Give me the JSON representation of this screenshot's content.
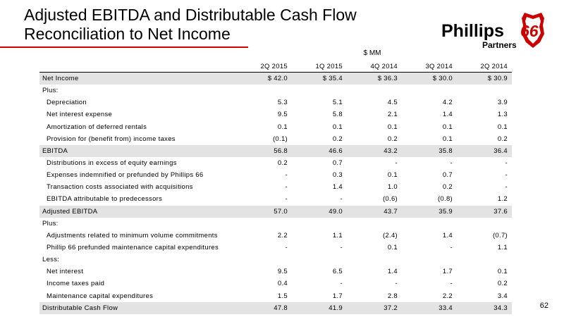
{
  "title": {
    "line1": "Adjusted EBITDA and Distributable Cash Flow",
    "line2": "Reconciliation to Net Income"
  },
  "logo": {
    "brand": "Phillips",
    "number": "66",
    "sub": "Partners",
    "color": "#cc0000"
  },
  "unit_label": "$ MM",
  "columns": [
    "2Q 2015",
    "1Q 2015",
    "4Q 2014",
    "3Q 2014",
    "2Q 2014"
  ],
  "rows": [
    {
      "label": "Net Income",
      "values": [
        "$ 42.0",
        "$ 35.4",
        "$ 36.3",
        "$ 30.0",
        "$ 30.9"
      ],
      "shaded": true,
      "indent": false
    },
    {
      "label": "Plus:",
      "values": [
        "",
        "",
        "",
        "",
        ""
      ],
      "shaded": false,
      "indent": false
    },
    {
      "label": "Depreciation",
      "values": [
        "5.3",
        "5.1",
        "4.5",
        "4.2",
        "3.9"
      ],
      "shaded": false,
      "indent": true
    },
    {
      "label": "Net interest expense",
      "values": [
        "9.5",
        "5.8",
        "2.1",
        "1.4",
        "1.3"
      ],
      "shaded": false,
      "indent": true
    },
    {
      "label": "Amortization of deferred rentals",
      "values": [
        "0.1",
        "0.1",
        "0.1",
        "0.1",
        "0.1"
      ],
      "shaded": false,
      "indent": true
    },
    {
      "label": "Provision for (benefit from) income taxes",
      "values": [
        "(0.1)",
        "0.2",
        "0.2",
        "0.1",
        "0.2"
      ],
      "shaded": false,
      "indent": true
    },
    {
      "label": "EBITDA",
      "values": [
        "56.8",
        "46.6",
        "43.2",
        "35.8",
        "36.4"
      ],
      "shaded": true,
      "indent": false
    },
    {
      "label": "Distributions in excess of equity earnings",
      "values": [
        "0.2",
        "0.7",
        "-",
        "-",
        "-"
      ],
      "shaded": false,
      "indent": true
    },
    {
      "label": "Expenses indemnified or prefunded by Phillips 66",
      "values": [
        "-",
        "0.3",
        "0.1",
        "0.7",
        "-"
      ],
      "shaded": false,
      "indent": true
    },
    {
      "label": "Transaction costs associated with acquisitions",
      "values": [
        "-",
        "1.4",
        "1.0",
        "0.2",
        "-"
      ],
      "shaded": false,
      "indent": true
    },
    {
      "label": "EBITDA attributable to predecessors",
      "values": [
        "-",
        "-",
        "(0.6)",
        "(0.8)",
        "1.2"
      ],
      "shaded": false,
      "indent": true
    },
    {
      "label": "Adjusted EBITDA",
      "values": [
        "57.0",
        "49.0",
        "43.7",
        "35.9",
        "37.6"
      ],
      "shaded": true,
      "indent": false
    },
    {
      "label": "Plus:",
      "values": [
        "",
        "",
        "",
        "",
        ""
      ],
      "shaded": false,
      "indent": false
    },
    {
      "label": "Adjustments related to minimum volume commitments",
      "values": [
        "2.2",
        "1.1",
        "(2.4)",
        "1.4",
        "(0.7)"
      ],
      "shaded": false,
      "indent": true
    },
    {
      "label": "Phillip 66 prefunded maintenance capital expenditures",
      "values": [
        "-",
        "-",
        "0.1",
        "-",
        "1.1"
      ],
      "shaded": false,
      "indent": true
    },
    {
      "label": "Less:",
      "values": [
        "",
        "",
        "",
        "",
        ""
      ],
      "shaded": false,
      "indent": false
    },
    {
      "label": "Net interest",
      "values": [
        "9.5",
        "6.5",
        "1.4",
        "1.7",
        "0.1"
      ],
      "shaded": false,
      "indent": true
    },
    {
      "label": "Income taxes paid",
      "values": [
        "0.4",
        "-",
        "-",
        "-",
        "0.2"
      ],
      "shaded": false,
      "indent": true
    },
    {
      "label": "Maintenance capital expenditures",
      "values": [
        "1.5",
        "1.7",
        "2.8",
        "2.2",
        "3.4"
      ],
      "shaded": false,
      "indent": true
    },
    {
      "label": "Distributable Cash Flow",
      "values": [
        "47.8",
        "41.9",
        "37.2",
        "33.4",
        "34.3"
      ],
      "shaded": true,
      "indent": false
    }
  ],
  "page_number": "62"
}
